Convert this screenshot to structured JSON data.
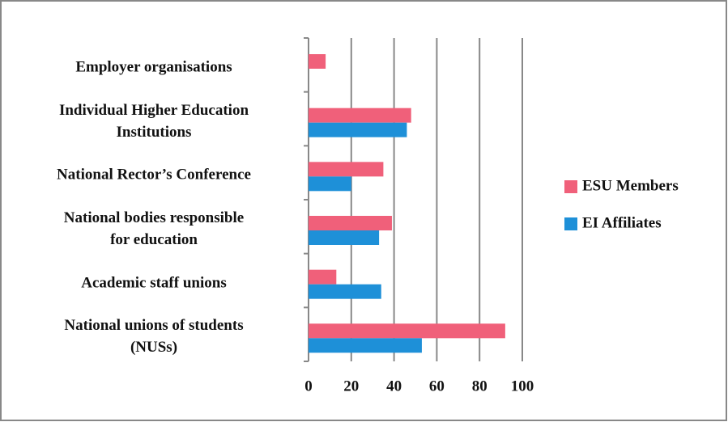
{
  "chart_data": {
    "type": "bar",
    "orientation": "horizontal",
    "categories": [
      "Employer organisations",
      "Individual Higher Education\nInstitutions",
      "National Rector’s Conference",
      "National bodies responsible\nfor education",
      "Academic staff unions",
      "National unions of students\n(NUSs)"
    ],
    "series": [
      {
        "name": "ESU Members",
        "color": "#f0607a",
        "values": [
          8,
          48,
          35,
          39,
          13,
          92
        ]
      },
      {
        "name": "EI Affiliates",
        "color": "#1e90d8",
        "values": [
          null,
          46,
          20,
          33,
          34,
          53
        ]
      }
    ],
    "xlim": [
      0,
      100
    ],
    "xticks": [
      0,
      20,
      40,
      60,
      80,
      100
    ],
    "grid": true,
    "legend": "right"
  }
}
